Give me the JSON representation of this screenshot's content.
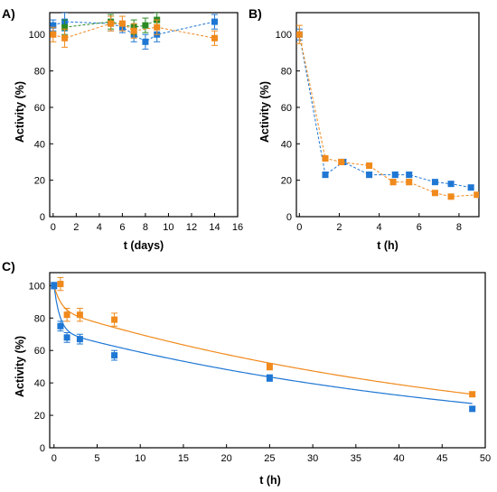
{
  "chart_data": [
    {
      "panel_label": "A)",
      "type": "scatter",
      "xlabel": "t (days)",
      "ylabel": "Activity (%)",
      "xlim": [
        -0.3,
        16
      ],
      "ylim": [
        0,
        112
      ],
      "xticks": [
        0,
        2,
        4,
        6,
        8,
        10,
        12,
        14,
        16
      ],
      "yticks": [
        0,
        20,
        40,
        60,
        80,
        100
      ],
      "grid": false,
      "series": [
        {
          "color": "#1f77d4",
          "marker": "square",
          "connect": "dashed",
          "x": [
            0,
            1,
            5,
            6,
            7,
            8,
            9,
            14
          ],
          "y": [
            105,
            107,
            106,
            104,
            100,
            96,
            100,
            107
          ],
          "err": [
            3,
            5,
            4,
            3,
            4,
            4,
            4,
            4
          ]
        },
        {
          "color": "#2c8a25",
          "marker": "square",
          "connect": "dashed",
          "x": [
            1,
            5,
            7,
            8,
            9
          ],
          "y": [
            104,
            107,
            104,
            105,
            108
          ],
          "err": [
            4,
            4,
            4,
            4,
            4
          ]
        },
        {
          "color": "#f08a1c",
          "marker": "square",
          "connect": "dashed",
          "x": [
            0,
            1,
            5,
            6,
            7,
            9,
            14
          ],
          "y": [
            100,
            98,
            106,
            106,
            102,
            104,
            98
          ],
          "err": [
            4,
            5,
            4,
            4,
            4,
            4,
            4
          ]
        }
      ]
    },
    {
      "panel_label": "B)",
      "type": "scatter",
      "xlabel": "t (h)",
      "ylabel": "Activity (%)",
      "xlim": [
        -0.15,
        9
      ],
      "ylim": [
        0,
        112
      ],
      "xticks": [
        0,
        2,
        4,
        6,
        8
      ],
      "yticks": [
        0,
        20,
        40,
        60,
        80,
        100
      ],
      "grid": false,
      "series": [
        {
          "color": "#1f77d4",
          "marker": "square",
          "connect": "dashed",
          "x": [
            0,
            1.3,
            2.2,
            3.5,
            4.8,
            5.5,
            6.8,
            7.6,
            8.6
          ],
          "y": [
            100,
            23,
            30,
            23,
            23,
            23,
            19,
            18,
            16
          ],
          "err": [
            3,
            1.5,
            1.5,
            1.5,
            1.5,
            1.5,
            1.2,
            1.2,
            1.2
          ]
        },
        {
          "color": "#f08a1c",
          "marker": "square",
          "connect": "dashed",
          "x": [
            0,
            1.3,
            2.1,
            3.5,
            4.7,
            5.5,
            6.8,
            7.6,
            8.9
          ],
          "y": [
            100,
            32,
            30,
            28,
            19,
            19,
            13,
            11,
            12
          ],
          "err": [
            5,
            1.5,
            1.5,
            1.5,
            1.5,
            1.5,
            1,
            1,
            1
          ]
        }
      ]
    },
    {
      "panel_label": "C)",
      "type": "scatter",
      "xlabel": "t (h)",
      "ylabel": "Activity (%)",
      "xlim": [
        -0.5,
        50
      ],
      "ylim": [
        0,
        108
      ],
      "xticks": [
        0,
        5,
        10,
        15,
        20,
        25,
        30,
        35,
        40,
        45,
        50
      ],
      "yticks": [
        0,
        20,
        40,
        60,
        80,
        100
      ],
      "grid": false,
      "series": [
        {
          "color": "#1f77d4",
          "marker": "square",
          "x": [
            0,
            0.75,
            1.5,
            3,
            7,
            25,
            48.5
          ],
          "y": [
            100,
            75,
            68,
            67,
            57,
            43,
            24
          ],
          "err": [
            2,
            3,
            3,
            3,
            3,
            2,
            1.5
          ]
        },
        {
          "color": "#f08a1c",
          "marker": "square",
          "x": [
            0.75,
            1.5,
            3,
            7,
            25,
            48.5
          ],
          "y": [
            101,
            82,
            82,
            79,
            50,
            33
          ],
          "err": [
            4,
            4,
            4,
            4,
            2,
            1.5
          ]
        }
      ],
      "fits": [
        {
          "color": "#1f77d4",
          "model": "bi-exponential",
          "params": {
            "a1": 28,
            "k1": 1.5,
            "a2": 72,
            "k2": 0.02
          }
        },
        {
          "color": "#f08a1c",
          "model": "bi-exponential",
          "params": {
            "a1": 15,
            "k1": 1.2,
            "a2": 85,
            "k2": 0.0195
          }
        }
      ]
    }
  ]
}
